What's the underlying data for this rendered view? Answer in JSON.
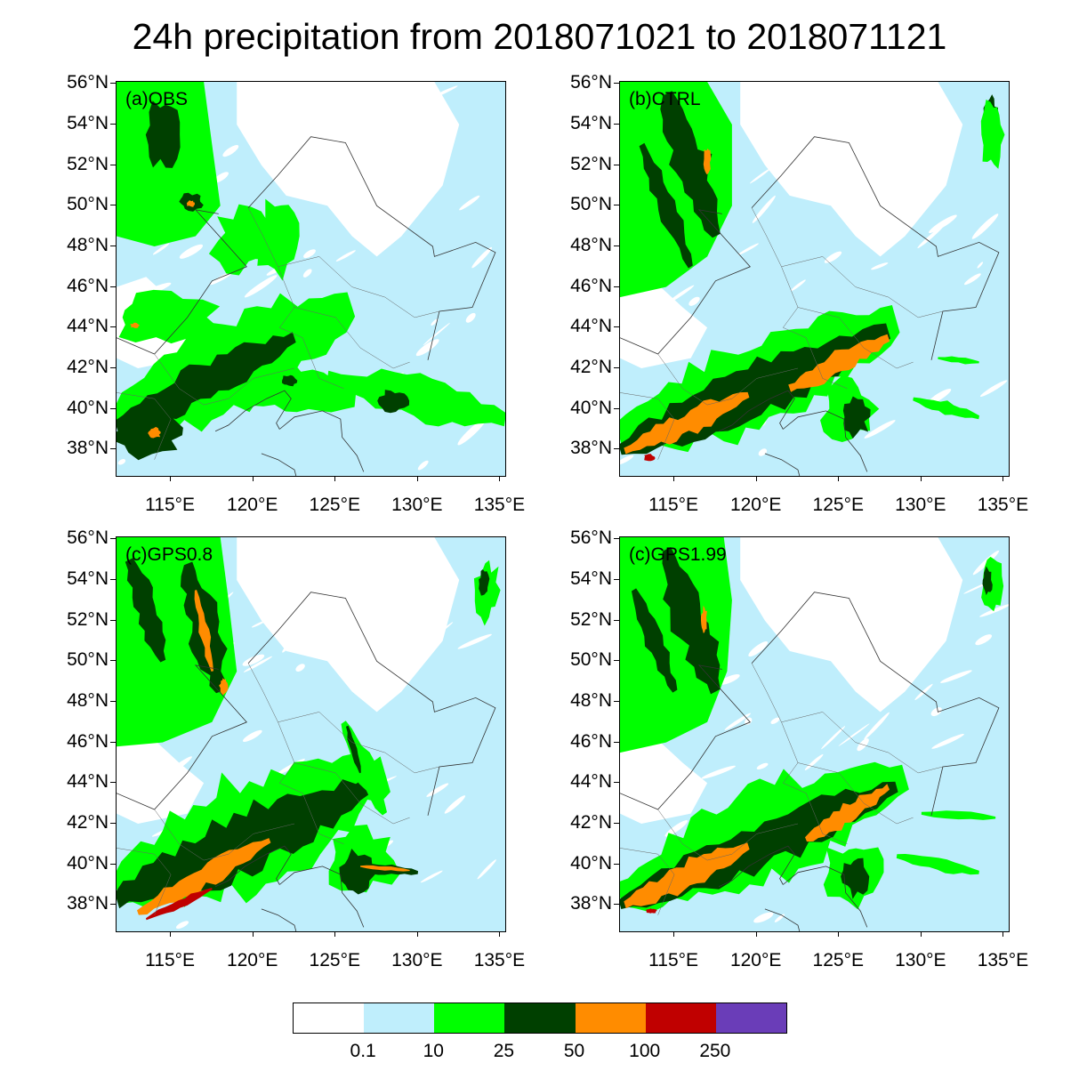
{
  "title": "24h precipitation from 2018071021 to 2018071121",
  "panels": [
    {
      "label": "(a)OBS"
    },
    {
      "label": "(b)CTRL"
    },
    {
      "label": "(c)GPS0.8"
    },
    {
      "label": "(c)GPS1.99"
    }
  ],
  "lat_labels": [
    "56°N",
    "54°N",
    "52°N",
    "50°N",
    "48°N",
    "46°N",
    "44°N",
    "42°N",
    "40°N",
    "38°N"
  ],
  "lon_labels": [
    "115°E",
    "120°E",
    "125°E",
    "130°E",
    "135°E"
  ],
  "map_extent": {
    "lon": [
      111.7,
      135.3
    ],
    "lat": [
      36.7,
      56.1
    ]
  },
  "colorbar": {
    "levels": [
      "0.1",
      "10",
      "25",
      "50",
      "100",
      "250"
    ],
    "colors": [
      "#ffffff",
      "#bfeefc",
      "#00ff00",
      "#004000",
      "#ff8c00",
      "#c00000",
      "#6a3db8"
    ],
    "units": ""
  }
}
